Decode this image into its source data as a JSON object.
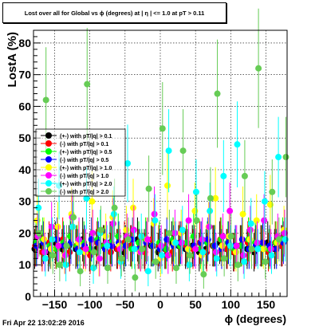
{
  "title": "Lost over all for Global vs ϕ (degrees) at | η | <= 1.0 at pT > 0.11",
  "timestamp": "Fri Apr 22 13:02:29 2016",
  "chart_data": {
    "type": "scatter",
    "xlabel": "ϕ (degrees)",
    "ylabel": "LostA (%)",
    "xlim": [
      -180,
      180
    ],
    "ylim": [
      0,
      84
    ],
    "xticks": [
      -150,
      -100,
      -50,
      0,
      50,
      100,
      150
    ],
    "yticks": [
      0,
      10,
      20,
      30,
      40,
      50,
      60,
      70,
      80
    ],
    "grid": true,
    "legend_position": "left",
    "colors": {
      "black": "#000000",
      "red": "#ff0000",
      "green": "#00ff00",
      "blue": "#0000ff",
      "yellow": "#ffff00",
      "magenta": "#ff00ff",
      "cyan": "#00ffff",
      "lightgreen": "#66cc55"
    },
    "series": [
      {
        "name": "(+-) with pT/|q| > 0.1",
        "color": "black",
        "values": [
          15,
          16,
          14,
          17,
          15,
          16,
          15,
          18,
          14,
          15,
          16,
          17,
          15,
          14,
          16,
          18,
          15,
          16,
          14,
          15,
          17,
          16,
          15,
          16,
          14,
          15,
          16,
          17,
          15,
          14,
          16,
          15,
          14,
          16,
          17,
          15,
          16
        ]
      },
      {
        "name": "(-) with pT/|q| > 0.1",
        "color": "red",
        "values": [
          16,
          14,
          17,
          15,
          18,
          14,
          16,
          15,
          13,
          17,
          16,
          14,
          15,
          17,
          16,
          15,
          14,
          18,
          16,
          15,
          14,
          17,
          16,
          15,
          17,
          14,
          16,
          18,
          15,
          14,
          16,
          17,
          15,
          16,
          14,
          17,
          16
        ]
      },
      {
        "name": "(+-) with pT/|q| > 0.5",
        "color": "green",
        "values": [
          17,
          18,
          16,
          15,
          17,
          19,
          16,
          17,
          15,
          18,
          16,
          17,
          19,
          16,
          15,
          17,
          18,
          16,
          17,
          15,
          18,
          16,
          17,
          19,
          15,
          17,
          16,
          18,
          17,
          15,
          16,
          18,
          17,
          16,
          15,
          17,
          18
        ]
      },
      {
        "name": "(-) with pT/|q| > 0.5",
        "color": "blue",
        "values": [
          16,
          17,
          15,
          18,
          16,
          17,
          15,
          16,
          18,
          17,
          15,
          16,
          17,
          16,
          18,
          15,
          17,
          16,
          15,
          18,
          16,
          17,
          15,
          16,
          17,
          18,
          16,
          15,
          17,
          16,
          18,
          15,
          16,
          17,
          16,
          15,
          17
        ]
      },
      {
        "name": "(+-) with pT/|q| > 1.0",
        "color": "yellow",
        "values": [
          24,
          18,
          15,
          22,
          13,
          26,
          17,
          14,
          30,
          12,
          19,
          25,
          16,
          21,
          28,
          14,
          18,
          23,
          12,
          35,
          17,
          20,
          15,
          27,
          13,
          22,
          31,
          16,
          19,
          14,
          26,
          18,
          24,
          15,
          29,
          17,
          21
        ]
      },
      {
        "name": "(-) with pT/|q| > 1.0",
        "color": "magenta",
        "values": [
          19,
          14,
          22,
          16,
          13,
          25,
          18,
          15,
          20,
          12,
          17,
          23,
          15,
          19,
          21,
          14,
          18,
          26,
          16,
          13,
          20,
          17,
          24,
          15,
          18,
          22,
          14,
          19,
          27,
          16,
          13,
          21,
          17,
          24,
          15,
          19,
          20
        ]
      },
      {
        "name": "(+-) with pT/|q| > 2.0",
        "color": "cyan",
        "values": [
          28,
          12,
          18,
          35,
          10,
          22,
          14,
          31,
          9,
          20,
          16,
          26,
          11,
          42,
          15,
          19,
          8,
          24,
          13,
          46,
          17,
          21,
          10,
          33,
          14,
          27,
          12,
          38,
          16,
          48,
          11,
          23,
          15,
          30,
          13,
          44,
          18
        ]
      },
      {
        "name": "(-) with pT/|q| > 2.0",
        "color": "lightgreen",
        "values": [
          20,
          62,
          13,
          10,
          16,
          25,
          8,
          67,
          14,
          21,
          9,
          28,
          12,
          18,
          6,
          15,
          34,
          11,
          53,
          20,
          9,
          46,
          13,
          24,
          7,
          31,
          64,
          12,
          19,
          10,
          38,
          15,
          72,
          11,
          33,
          18,
          44
        ]
      }
    ]
  }
}
